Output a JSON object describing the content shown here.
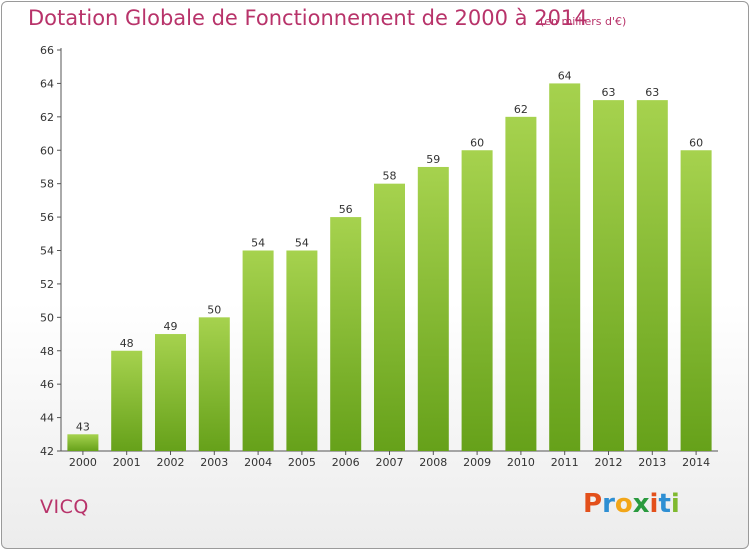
{
  "header": {
    "title": "Dotation Globale de Fonctionnement de 2000 à 2014",
    "subtitle": "(en milliers d'€)"
  },
  "footer": {
    "commune": "VICQ",
    "logo": "Proxiti"
  },
  "colors": {
    "bar_top": "#a6d24e",
    "bar_bottom": "#66a11a",
    "title": "#b8336a",
    "axis": "#555555",
    "grid": "#dddddd"
  },
  "chart_data": {
    "type": "bar",
    "title": "Dotation Globale de Fonctionnement de 2000 à 2014",
    "subtitle": "(en milliers d'€)",
    "xlabel": "",
    "ylabel": "",
    "categories": [
      "2000",
      "2001",
      "2002",
      "2003",
      "2004",
      "2005",
      "2006",
      "2007",
      "2008",
      "2009",
      "2010",
      "2011",
      "2012",
      "2013",
      "2014"
    ],
    "values": [
      43,
      48,
      49,
      50,
      54,
      54,
      56,
      58,
      59,
      60,
      62,
      64,
      63,
      63,
      60
    ],
    "ylim": [
      42,
      66
    ],
    "yticks": [
      42,
      44,
      46,
      48,
      50,
      52,
      54,
      56,
      58,
      60,
      62,
      64,
      66
    ],
    "grid": false,
    "legend": "none",
    "data_labels": true
  }
}
